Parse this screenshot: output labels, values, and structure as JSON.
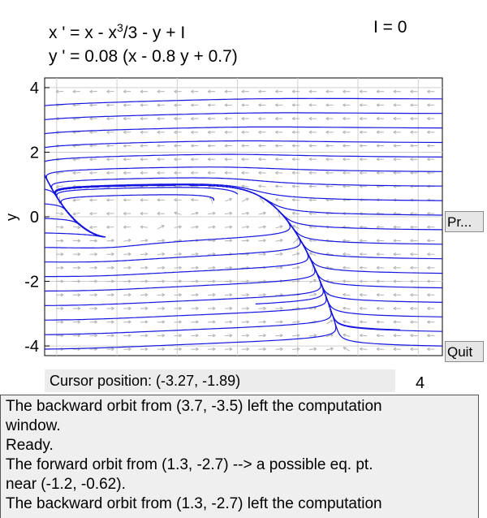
{
  "equations": {
    "x_prefix": "x ' = x - x",
    "x_exponent": "3",
    "x_suffix": "/3 - y + I",
    "y_line": "y ' = 0.08 (x - 0.8 y + 0.7)",
    "parameter": "I = 0"
  },
  "plot": {
    "y_axis_label": "y",
    "y_ticks": [
      "4",
      "2",
      "0",
      "-2",
      "-4"
    ],
    "x_partial_label": "4",
    "colors": {
      "orbit": "#1515e0",
      "field_arrow": "#b4b4b4",
      "grid": "#d0d0d0"
    }
  },
  "buttons": {
    "print_label": "Pr...",
    "quit_label": "Quit"
  },
  "cursor": {
    "label": "Cursor position:  (-3.27, -1.89)"
  },
  "log": {
    "lines": [
      "The backward orbit from (3.7, -3.5) left the computation",
      "window.",
      "Ready.",
      "The forward orbit from (1.3, -2.7) --> a possible eq. pt.",
      "near (-1.2, -0.62).",
      "The backward orbit from (1.3, -2.7) left the computation"
    ]
  }
}
